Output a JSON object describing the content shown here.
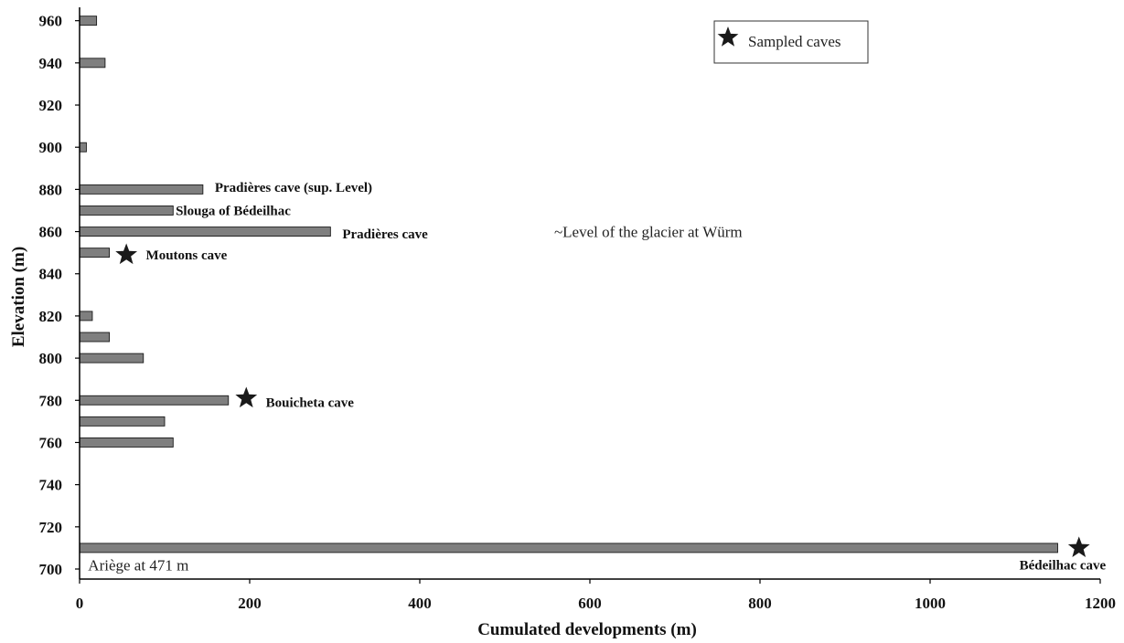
{
  "chart_data": {
    "type": "bar",
    "orientation": "horizontal",
    "xlabel": "Cumulated developments (m)",
    "ylabel": "Elevation (m)",
    "xlim": [
      0,
      1200
    ],
    "ylim": [
      700,
      965
    ],
    "x_ticks": [
      "0",
      "200",
      "400",
      "600",
      "800",
      "1000",
      "1200"
    ],
    "y_ticks": [
      "700",
      "720",
      "740",
      "760",
      "780",
      "800",
      "820",
      "840",
      "860",
      "880",
      "900",
      "920",
      "940",
      "960"
    ],
    "grid": false,
    "bar_color": "#7f7f7f",
    "marker_color": "#1a1a1a",
    "bars": [
      {
        "elevation": 710,
        "value": 1150
      },
      {
        "elevation": 760,
        "value": 110
      },
      {
        "elevation": 770,
        "value": 100
      },
      {
        "elevation": 780,
        "value": 175
      },
      {
        "elevation": 800,
        "value": 75
      },
      {
        "elevation": 810,
        "value": 35
      },
      {
        "elevation": 820,
        "value": 15
      },
      {
        "elevation": 850,
        "value": 35
      },
      {
        "elevation": 860,
        "value": 295
      },
      {
        "elevation": 870,
        "value": 110
      },
      {
        "elevation": 880,
        "value": 145
      },
      {
        "elevation": 900,
        "value": 8
      },
      {
        "elevation": 940,
        "value": 30
      },
      {
        "elevation": 960,
        "value": 20
      }
    ],
    "sampled_caves": [
      {
        "elevation": 710,
        "value": 1175
      },
      {
        "elevation": 781,
        "value": 196
      },
      {
        "elevation": 849,
        "value": 55
      }
    ],
    "cave_labels": [
      {
        "text": "Pradières cave (sup. Level)",
        "elevation": 881,
        "value": 159
      },
      {
        "text": "Slouga of Bédeilhac",
        "elevation": 870,
        "value": 113
      },
      {
        "text": "Pradières cave",
        "elevation": 859,
        "value": 309
      },
      {
        "text": "Moutons cave",
        "elevation": 849,
        "value": 78
      },
      {
        "text": "Bouicheta cave",
        "elevation": 779,
        "value": 219
      },
      {
        "text": "Bédeilhac cave",
        "elevation": 702,
        "value": 1105
      }
    ],
    "annotations": [
      {
        "text": "~Level of the glacier at Würm",
        "elevation": 860,
        "value": 558
      },
      {
        "text": "Ariège at 471 m",
        "elevation": 702,
        "value": 10
      }
    ],
    "legend": {
      "label": "Sampled caves",
      "position": "top-right"
    }
  }
}
